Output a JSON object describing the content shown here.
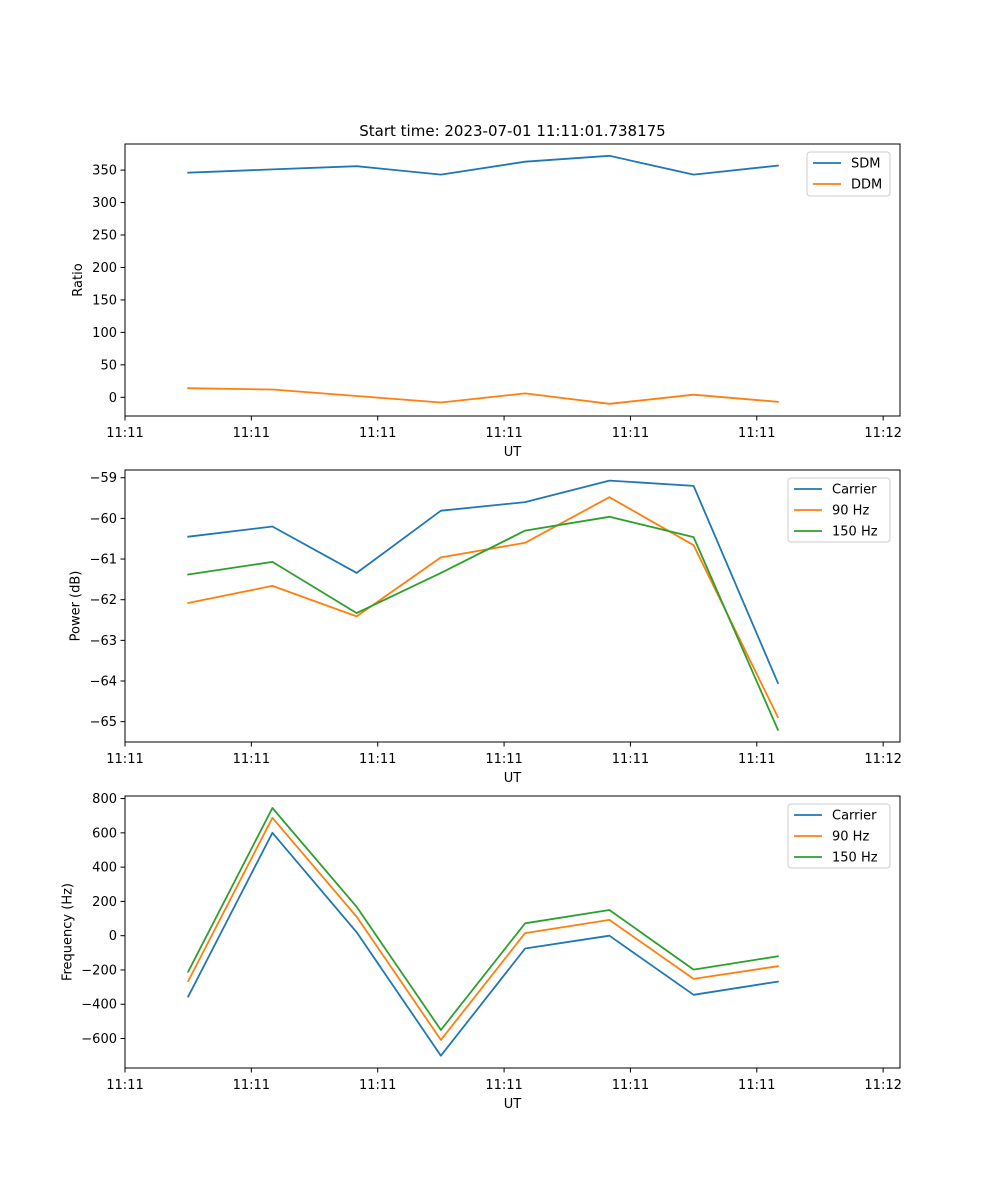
{
  "figure_title": "Start time: 2023-07-01 11:11:01.738175",
  "chart_data": [
    {
      "type": "line",
      "xlabel": "UT",
      "ylabel": "Ratio",
      "x": [
        0,
        1,
        2,
        3,
        4,
        5,
        6,
        7
      ],
      "x_range": [
        -0.75,
        8.45
      ],
      "x_ticks": [
        -0.75,
        0.75,
        2.25,
        3.75,
        5.25,
        6.75,
        8.25
      ],
      "x_tick_labels": [
        "11:11",
        "11:11",
        "11:11",
        "11:11",
        "11:11",
        "11:11",
        "11:12"
      ],
      "ylim": [
        -28.8,
        390.2
      ],
      "y_ticks": [
        0,
        50,
        100,
        150,
        200,
        250,
        300,
        350
      ],
      "y_tick_labels": [
        "0",
        "50",
        "100",
        "150",
        "200",
        "250",
        "300",
        "350"
      ],
      "legend": "top-right",
      "series": [
        {
          "name": "SDM",
          "color": "#1f77b4",
          "values": [
            346,
            351,
            356,
            343,
            363,
            372,
            343,
            357
          ]
        },
        {
          "name": "DDM",
          "color": "#ff7f0e",
          "values": [
            14,
            12,
            2,
            -8,
            6,
            -10,
            4,
            -7
          ]
        }
      ]
    },
    {
      "type": "line",
      "xlabel": "UT",
      "ylabel": "Power (dB)",
      "x": [
        0,
        1,
        2,
        3,
        4,
        5,
        6,
        7
      ],
      "x_range": [
        -0.75,
        8.45
      ],
      "x_ticks": [
        -0.75,
        0.75,
        2.25,
        3.75,
        5.25,
        6.75,
        8.25
      ],
      "x_tick_labels": [
        "11:11",
        "11:11",
        "11:11",
        "11:11",
        "11:11",
        "11:11",
        "11:12"
      ],
      "ylim": [
        -65.5,
        -58.81
      ],
      "y_ticks": [
        -65,
        -64,
        -63,
        -62,
        -61,
        -60,
        -59
      ],
      "y_tick_labels": [
        "−65",
        "−64",
        "−63",
        "−62",
        "−61",
        "−60",
        "−59"
      ],
      "legend": "top-right",
      "series": [
        {
          "name": "Carrier",
          "color": "#1f77b4",
          "values": [
            -60.45,
            -60.2,
            -61.34,
            -59.81,
            -59.6,
            -59.07,
            -59.2,
            -64.05
          ]
        },
        {
          "name": "90 Hz",
          "color": "#ff7f0e",
          "values": [
            -62.08,
            -61.66,
            -62.41,
            -60.96,
            -60.6,
            -59.48,
            -60.66,
            -64.89
          ]
        },
        {
          "name": "150 Hz",
          "color": "#2ca02c",
          "values": [
            -61.38,
            -61.07,
            -62.33,
            -61.34,
            -60.3,
            -59.96,
            -60.46,
            -65.2
          ]
        }
      ]
    },
    {
      "type": "line",
      "xlabel": "UT",
      "ylabel": "Frequency (Hz)",
      "x": [
        0,
        1,
        2,
        3,
        4,
        5,
        6,
        7
      ],
      "x_range": [
        -0.75,
        8.45
      ],
      "x_ticks": [
        -0.75,
        0.75,
        2.25,
        3.75,
        5.25,
        6.75,
        8.25
      ],
      "x_tick_labels": [
        "11:11",
        "11:11",
        "11:11",
        "11:11",
        "11:11",
        "11:11",
        "11:12"
      ],
      "ylim": [
        -772,
        815
      ],
      "y_ticks": [
        -600,
        -400,
        -200,
        0,
        200,
        400,
        600,
        800
      ],
      "y_tick_labels": [
        "−600",
        "−400",
        "−200",
        "0",
        "200",
        "400",
        "600",
        "800"
      ],
      "legend": "top-right",
      "series": [
        {
          "name": "Carrier",
          "color": "#1f77b4",
          "values": [
            -355,
            600,
            20,
            -700,
            -75,
            0,
            -345,
            -268
          ]
        },
        {
          "name": "90 Hz",
          "color": "#ff7f0e",
          "values": [
            -265,
            688,
            110,
            -608,
            15,
            92,
            -252,
            -178
          ]
        },
        {
          "name": "150 Hz",
          "color": "#2ca02c",
          "values": [
            -210,
            745,
            168,
            -550,
            72,
            150,
            -198,
            -120
          ]
        }
      ]
    }
  ]
}
